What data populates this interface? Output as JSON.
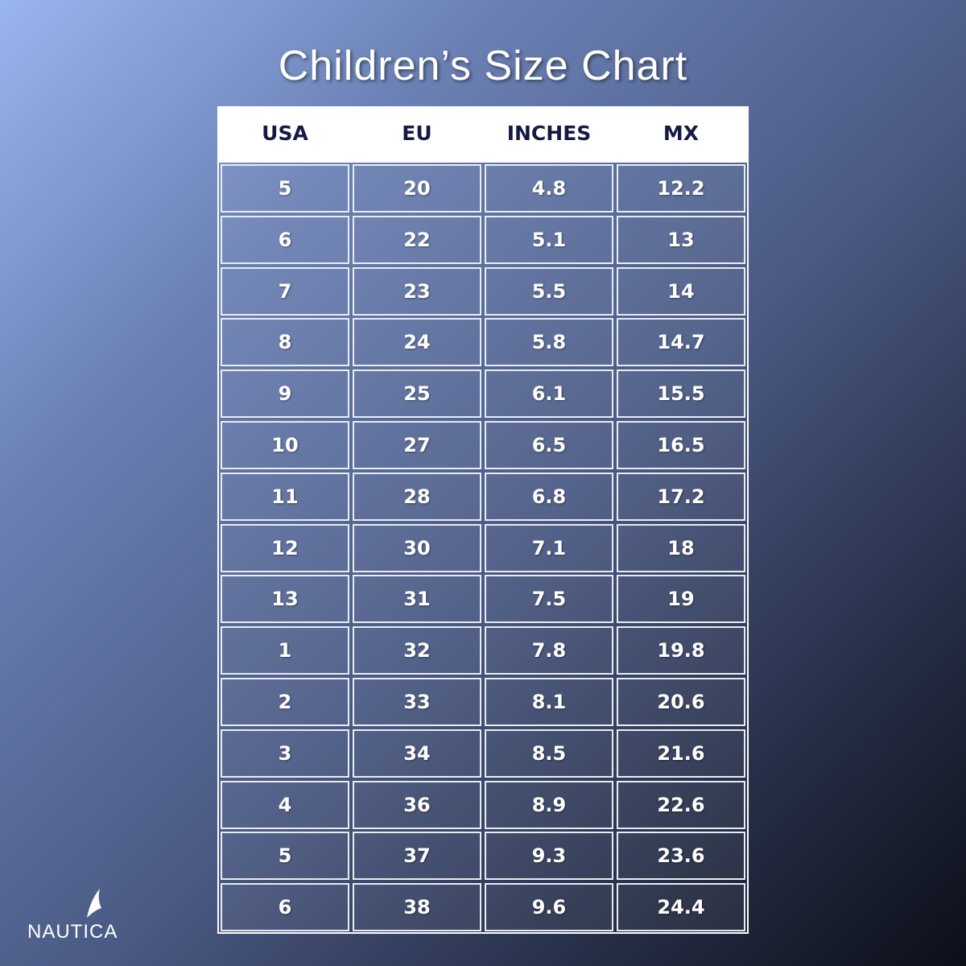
{
  "header": {
    "title": "Children’s Size Chart"
  },
  "table": {
    "columns": [
      "USA",
      "EU",
      "INCHES",
      "MX"
    ],
    "rows": [
      [
        "5",
        "20",
        "4.8",
        "12.2"
      ],
      [
        "6",
        "22",
        "5.1",
        "13"
      ],
      [
        "7",
        "23",
        "5.5",
        "14"
      ],
      [
        "8",
        "24",
        "5.8",
        "14.7"
      ],
      [
        "9",
        "25",
        "6.1",
        "15.5"
      ],
      [
        "10",
        "27",
        "6.5",
        "16.5"
      ],
      [
        "11",
        "28",
        "6.8",
        "17.2"
      ],
      [
        "12",
        "30",
        "7.1",
        "18"
      ],
      [
        "13",
        "31",
        "7.5",
        "19"
      ],
      [
        "1",
        "32",
        "7.8",
        "19.8"
      ],
      [
        "2",
        "33",
        "8.1",
        "20.6"
      ],
      [
        "3",
        "34",
        "8.5",
        "21.6"
      ],
      [
        "4",
        "36",
        "8.9",
        "22.6"
      ],
      [
        "5",
        "37",
        "9.3",
        "23.6"
      ],
      [
        "6",
        "38",
        "9.6",
        "24.4"
      ]
    ]
  },
  "logo": {
    "text": "NAUTICA"
  }
}
